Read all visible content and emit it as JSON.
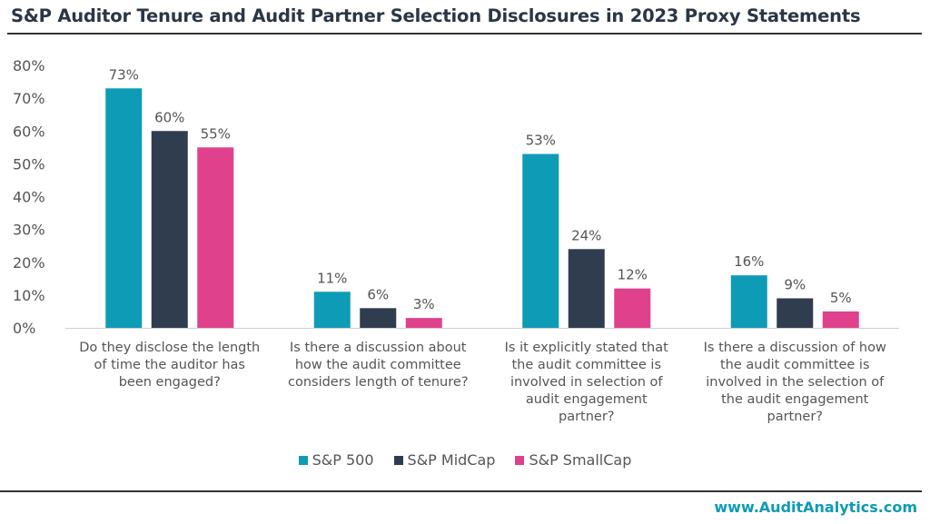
{
  "chart_data": {
    "type": "bar",
    "title": "S&P Auditor Tenure and Audit Partner Selection Disclosures in 2023 Proxy Statements",
    "categories": [
      "Do they disclose the length of time the auditor has been engaged?",
      "Is there a discussion about how the audit committee considers length of tenure?",
      "Is it explicitly stated that the audit committee is involved in selection of audit engagement partner?",
      "Is there a discussion of how the audit committee is involved in the selection of the audit engagement partner?"
    ],
    "category_lines": [
      [
        "Do they disclose the length",
        "of time the auditor has",
        "been engaged?"
      ],
      [
        "Is there a discussion about",
        "how the audit committee",
        "considers length of tenure?"
      ],
      [
        "Is it explicitly stated that",
        "the audit committee is",
        "involved in selection of",
        "audit engagement",
        "partner?"
      ],
      [
        "Is there a discussion of how",
        "the audit committee is",
        "involved in the selection of",
        "the audit engagement",
        "partner?"
      ]
    ],
    "series": [
      {
        "name": "S&P 500",
        "color": "#0e9bb5",
        "values": [
          73,
          11,
          53,
          16
        ]
      },
      {
        "name": "S&P MidCap",
        "color": "#2f3d4f",
        "values": [
          60,
          6,
          24,
          9
        ]
      },
      {
        "name": "S&P SmallCap",
        "color": "#e0418c",
        "values": [
          55,
          3,
          12,
          5
        ]
      }
    ],
    "ylim": [
      0,
      80
    ],
    "yticks": [
      "0%",
      "10%",
      "20%",
      "30%",
      "40%",
      "50%",
      "60%",
      "70%",
      "80%"
    ],
    "value_suffix": "%",
    "xlabel": "",
    "ylabel": "",
    "legend_position": "bottom",
    "grid": false
  },
  "footer": "www.AuditAnalytics.com"
}
